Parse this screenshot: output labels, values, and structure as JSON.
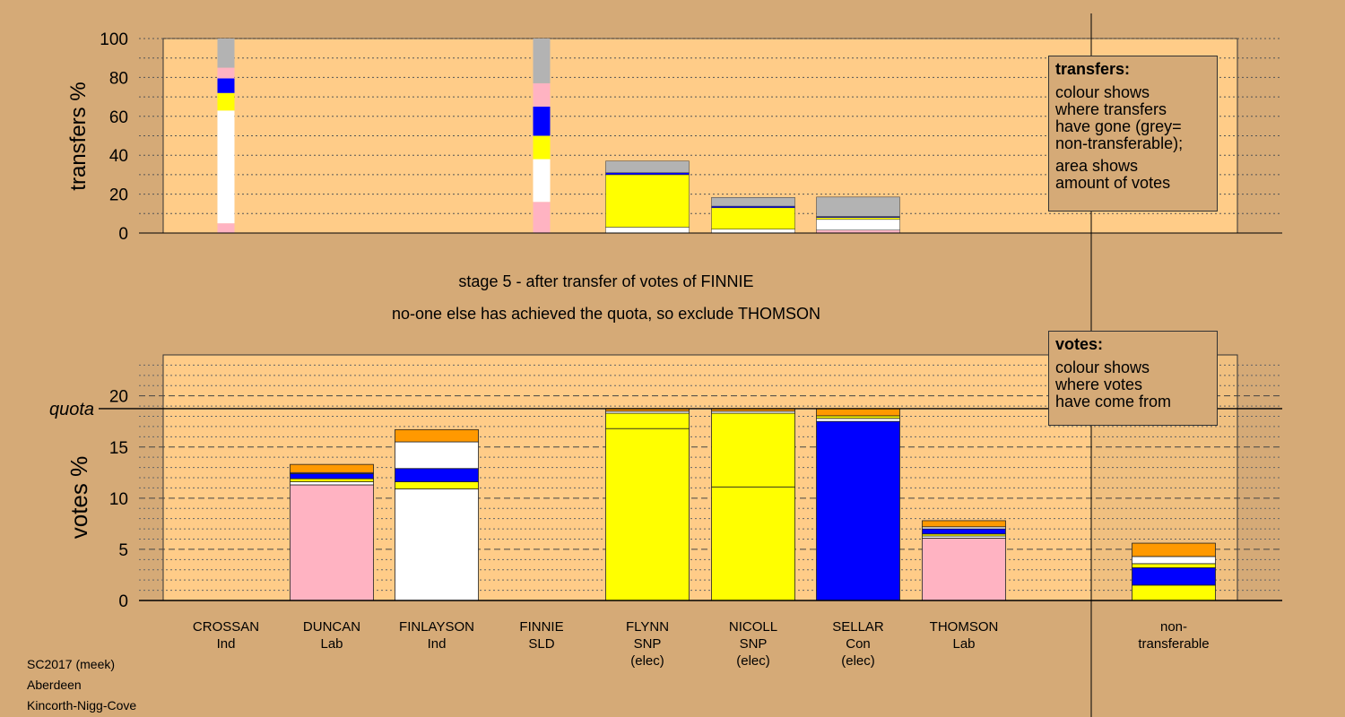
{
  "subtitle_1": "stage 5 - after transfer of votes of FINNIE",
  "subtitle_2": "no-one else has achieved the quota, so exclude THOMSON",
  "footer": {
    "line1": "SC2017 (meek)",
    "line2": "Aberdeen",
    "line3": "Kincorth-Nigg-Cove"
  },
  "legend_transfers": {
    "title": "transfers:",
    "lines": [
      "colour shows",
      "where transfers",
      "have gone (grey=",
      "non-transferable);"
    ],
    "lines2": [
      "area shows",
      "amount of votes"
    ]
  },
  "legend_votes": {
    "title": "votes:",
    "lines": [
      "colour shows",
      "where votes",
      "have come from"
    ]
  },
  "colors": {
    "background": "#d5aa77",
    "plot_bg": "#ffcc88",
    "Ind": "#ffffff",
    "Lab": "#ffb3c2",
    "SNP": "#ffff00",
    "Con": "#0000ff",
    "SLD": "#ff9900",
    "nontransferable": "#b3b3b3"
  },
  "chart_data": [
    {
      "type": "bar",
      "ylabel": "transfers %",
      "ylim": [
        0,
        100
      ],
      "yticks": [
        0,
        20,
        40,
        60,
        80,
        100
      ],
      "columns": [
        {
          "position": 0,
          "width": "narrow",
          "segments": [
            {
              "color": "Lab",
              "value": 5
            },
            {
              "color": "Ind",
              "value": 58
            },
            {
              "color": "SNP",
              "value": 9
            },
            {
              "color": "Con",
              "value": 7.5
            },
            {
              "color": "Lab",
              "value": 5.5
            },
            {
              "color": "nontransferable",
              "value": 15
            }
          ]
        },
        {
          "position": 3,
          "width": "narrow",
          "segments": [
            {
              "color": "Lab",
              "value": 16
            },
            {
              "color": "Ind",
              "value": 22
            },
            {
              "color": "SNP",
              "value": 12
            },
            {
              "color": "Con",
              "value": 15
            },
            {
              "color": "Lab",
              "value": 12
            },
            {
              "color": "nontransferable",
              "value": 23
            }
          ]
        },
        {
          "position": 4,
          "width": "wide",
          "segments": [
            {
              "color": "Ind",
              "value": 3
            },
            {
              "color": "SNP",
              "value": 27
            },
            {
              "color": "Con",
              "value": 1
            },
            {
              "color": "nontransferable",
              "value": 6
            }
          ]
        },
        {
          "position": 5,
          "width": "wide",
          "segments": [
            {
              "color": "Ind",
              "value": 2
            },
            {
              "color": "SNP",
              "value": 11
            },
            {
              "color": "Con",
              "value": 0.8
            },
            {
              "color": "nontransferable",
              "value": 4.5
            }
          ]
        },
        {
          "position": 6,
          "width": "wide",
          "segments": [
            {
              "color": "Lab",
              "value": 1.5
            },
            {
              "color": "Ind",
              "value": 5.5
            },
            {
              "color": "SNP",
              "value": 1
            },
            {
              "color": "Con",
              "value": 0.5
            },
            {
              "color": "nontransferable",
              "value": 10
            }
          ]
        }
      ]
    },
    {
      "type": "bar",
      "ylabel": "votes %",
      "ylim": [
        0,
        24
      ],
      "yticks": [
        0,
        5,
        10,
        15,
        20
      ],
      "quota": 18.75,
      "quota_label": "quota",
      "categories": [
        {
          "name": "CROSSAN",
          "party": "Ind",
          "status": ""
        },
        {
          "name": "DUNCAN",
          "party": "Lab",
          "status": ""
        },
        {
          "name": "FINLAYSON",
          "party": "Ind",
          "status": ""
        },
        {
          "name": "FINNIE",
          "party": "SLD",
          "status": ""
        },
        {
          "name": "FLYNN",
          "party": "SNP",
          "status": "(elec)"
        },
        {
          "name": "NICOLL",
          "party": "SNP",
          "status": "(elec)"
        },
        {
          "name": "SELLAR",
          "party": "Con",
          "status": "(elec)"
        },
        {
          "name": "THOMSON",
          "party": "Lab",
          "status": ""
        }
      ],
      "nontransferable_label": [
        "non-",
        "transferable"
      ],
      "stacks": [
        [],
        [
          {
            "color": "Lab",
            "value": 11.3
          },
          {
            "color": "Ind",
            "value": 0.3
          },
          {
            "color": "SNP",
            "value": 0.3
          },
          {
            "color": "Con",
            "value": 0.5
          },
          {
            "color": "Lab",
            "value": 0.1
          },
          {
            "color": "SLD",
            "value": 0.8
          }
        ],
        [
          {
            "color": "Ind",
            "value": 10.9
          },
          {
            "color": "SNP",
            "value": 0.7
          },
          {
            "color": "Con",
            "value": 1.3
          },
          {
            "color": "Ind",
            "value": 2.6
          },
          {
            "color": "SLD",
            "value": 1.2
          }
        ],
        [],
        [
          {
            "color": "SNP",
            "value": 16.8
          },
          {
            "color": "SNP",
            "value": 1.5
          },
          {
            "color": "Ind",
            "value": 0.2
          },
          {
            "color": "SLD",
            "value": 0.25
          }
        ],
        [
          {
            "color": "SNP",
            "value": 11.1
          },
          {
            "color": "SNP",
            "value": 7.2
          },
          {
            "color": "Ind",
            "value": 0.2
          },
          {
            "color": "SLD",
            "value": 0.25
          }
        ],
        [
          {
            "color": "Con",
            "value": 17.5
          },
          {
            "color": "Ind",
            "value": 0.3
          },
          {
            "color": "SNP",
            "value": 0.25
          },
          {
            "color": "SLD",
            "value": 0.7
          }
        ],
        [
          {
            "color": "Lab",
            "value": 6.1
          },
          {
            "color": "Ind",
            "value": 0.2
          },
          {
            "color": "SNP",
            "value": 0.2
          },
          {
            "color": "Con",
            "value": 0.5
          },
          {
            "color": "Ind",
            "value": 0.2
          },
          {
            "color": "SLD",
            "value": 0.6
          }
        ]
      ],
      "nontransferable_stack": [
        {
          "color": "SNP",
          "value": 1.5
        },
        {
          "color": "Con",
          "value": 1.7
        },
        {
          "color": "SNP",
          "value": 0.4
        },
        {
          "color": "Ind",
          "value": 0.7
        },
        {
          "color": "SLD",
          "value": 1.3
        }
      ]
    }
  ]
}
